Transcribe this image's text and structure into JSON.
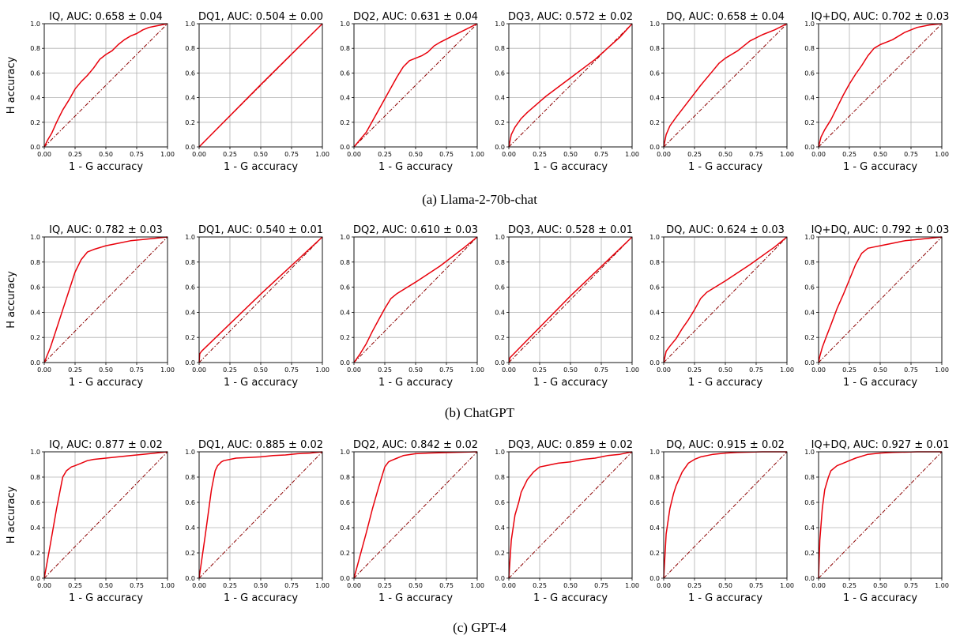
{
  "chart_data": [
    {
      "caption": "(a) Llama-2-70b-chat",
      "type": "line",
      "panels": [
        {
          "title": "IQ, AUC: 0.658 ± 0.04",
          "x": [
            0,
            0.03,
            0.06,
            0.1,
            0.15,
            0.2,
            0.25,
            0.3,
            0.35,
            0.4,
            0.45,
            0.5,
            0.55,
            0.6,
            0.65,
            0.7,
            0.75,
            0.8,
            0.85,
            0.9,
            1.0
          ],
          "y": [
            0,
            0.06,
            0.11,
            0.2,
            0.3,
            0.38,
            0.47,
            0.53,
            0.58,
            0.64,
            0.71,
            0.75,
            0.78,
            0.83,
            0.87,
            0.9,
            0.92,
            0.95,
            0.97,
            0.98,
            1.0
          ]
        },
        {
          "title": "DQ1, AUC: 0.504 ± 0.00",
          "x": [
            0,
            0.02,
            0.5,
            1.0
          ],
          "y": [
            0,
            0.02,
            0.505,
            1.0
          ]
        },
        {
          "title": "DQ2, AUC: 0.631 ± 0.04",
          "x": [
            0,
            0.1,
            0.2,
            0.3,
            0.35,
            0.4,
            0.45,
            0.5,
            0.55,
            0.6,
            0.65,
            0.7,
            0.8,
            0.9,
            1.0
          ],
          "y": [
            0,
            0.12,
            0.3,
            0.48,
            0.57,
            0.65,
            0.7,
            0.72,
            0.74,
            0.77,
            0.82,
            0.85,
            0.9,
            0.95,
            1.0
          ]
        },
        {
          "title": "DQ3, AUC: 0.572 ± 0.02",
          "x": [
            0,
            0.02,
            0.05,
            0.1,
            0.15,
            0.3,
            0.5,
            0.7,
            0.9,
            1.0
          ],
          "y": [
            0,
            0.1,
            0.16,
            0.23,
            0.28,
            0.41,
            0.56,
            0.71,
            0.89,
            1.0
          ]
        },
        {
          "title": "DQ, AUC: 0.658 ± 0.04",
          "x": [
            0,
            0.02,
            0.05,
            0.1,
            0.2,
            0.3,
            0.4,
            0.45,
            0.5,
            0.55,
            0.6,
            0.65,
            0.7,
            0.8,
            0.9,
            1.0
          ],
          "y": [
            0,
            0.1,
            0.17,
            0.24,
            0.37,
            0.5,
            0.62,
            0.68,
            0.72,
            0.75,
            0.78,
            0.82,
            0.86,
            0.91,
            0.95,
            1.0
          ]
        },
        {
          "title": "IQ+DQ, AUC: 0.702 ± 0.03",
          "x": [
            0,
            0.02,
            0.05,
            0.1,
            0.15,
            0.2,
            0.25,
            0.3,
            0.35,
            0.4,
            0.45,
            0.5,
            0.55,
            0.6,
            0.7,
            0.8,
            0.9,
            1.0
          ],
          "y": [
            0,
            0.08,
            0.14,
            0.22,
            0.32,
            0.42,
            0.51,
            0.59,
            0.66,
            0.74,
            0.8,
            0.83,
            0.85,
            0.87,
            0.93,
            0.97,
            0.99,
            1.0
          ]
        }
      ],
      "xlabel": "1 - G accuracy",
      "ylabel": "H accuracy",
      "xlim": [
        0,
        1
      ],
      "ylim": [
        0,
        1
      ],
      "xticks": [
        "0.00",
        "0.25",
        "0.50",
        "0.75",
        "1.00"
      ],
      "yticks": [
        "0.0",
        "0.2",
        "0.4",
        "0.6",
        "0.8",
        "1.0"
      ],
      "grid": true
    },
    {
      "caption": "(b) ChatGPT",
      "type": "line",
      "panels": [
        {
          "title": "IQ, AUC: 0.782 ± 0.03",
          "x": [
            0,
            0.05,
            0.1,
            0.15,
            0.2,
            0.25,
            0.3,
            0.35,
            0.4,
            0.5,
            0.6,
            0.7,
            0.8,
            0.9,
            1.0
          ],
          "y": [
            0,
            0.12,
            0.27,
            0.42,
            0.57,
            0.72,
            0.82,
            0.88,
            0.9,
            0.93,
            0.95,
            0.97,
            0.98,
            0.99,
            1.0
          ]
        },
        {
          "title": "DQ1, AUC: 0.540 ± 0.01",
          "x": [
            0,
            0.005,
            0.02,
            0.5,
            1.0
          ],
          "y": [
            0,
            0.07,
            0.09,
            0.545,
            1.0
          ]
        },
        {
          "title": "DQ2, AUC: 0.610 ± 0.03",
          "x": [
            0,
            0.05,
            0.1,
            0.15,
            0.2,
            0.25,
            0.3,
            0.35,
            0.5,
            0.7,
            0.9,
            1.0
          ],
          "y": [
            0,
            0.07,
            0.15,
            0.25,
            0.34,
            0.43,
            0.51,
            0.55,
            0.64,
            0.77,
            0.92,
            1.0
          ]
        },
        {
          "title": "DQ3, AUC: 0.528 ± 0.01",
          "x": [
            0,
            0.01,
            0.03,
            0.5,
            1.0
          ],
          "y": [
            0,
            0.04,
            0.06,
            0.53,
            1.0
          ]
        },
        {
          "title": "DQ, AUC: 0.624 ± 0.03",
          "x": [
            0,
            0.02,
            0.05,
            0.1,
            0.15,
            0.2,
            0.25,
            0.3,
            0.35,
            0.5,
            0.7,
            0.9,
            1.0
          ],
          "y": [
            0,
            0.09,
            0.13,
            0.19,
            0.27,
            0.34,
            0.42,
            0.51,
            0.56,
            0.65,
            0.78,
            0.92,
            1.0
          ]
        },
        {
          "title": "IQ+DQ, AUC: 0.792 ± 0.03",
          "x": [
            0,
            0.01,
            0.03,
            0.06,
            0.1,
            0.15,
            0.2,
            0.25,
            0.3,
            0.35,
            0.4,
            0.45,
            0.5,
            0.6,
            0.7,
            0.8,
            0.9,
            1.0
          ],
          "y": [
            0,
            0.05,
            0.12,
            0.2,
            0.3,
            0.43,
            0.54,
            0.66,
            0.78,
            0.87,
            0.91,
            0.92,
            0.93,
            0.95,
            0.97,
            0.98,
            0.99,
            1.0
          ]
        }
      ],
      "xlabel": "1 - G accuracy",
      "ylabel": "H accuracy",
      "xlim": [
        0,
        1
      ],
      "ylim": [
        0,
        1
      ],
      "xticks": [
        "0.00",
        "0.25",
        "0.50",
        "0.75",
        "1.00"
      ],
      "yticks": [
        "0.0",
        "0.2",
        "0.4",
        "0.6",
        "0.8",
        "1.0"
      ],
      "grid": true
    },
    {
      "caption": "(c) GPT-4",
      "type": "line",
      "panels": [
        {
          "title": "IQ, AUC: 0.877 ± 0.02",
          "x": [
            0,
            0.05,
            0.1,
            0.15,
            0.18,
            0.22,
            0.25,
            0.3,
            0.35,
            0.4,
            0.5,
            0.6,
            0.7,
            0.8,
            0.9,
            1.0
          ],
          "y": [
            0,
            0.27,
            0.55,
            0.8,
            0.85,
            0.88,
            0.89,
            0.91,
            0.93,
            0.94,
            0.95,
            0.96,
            0.97,
            0.98,
            0.99,
            1.0
          ]
        },
        {
          "title": "DQ1, AUC: 0.885 ± 0.02",
          "x": [
            0,
            0.05,
            0.1,
            0.13,
            0.15,
            0.18,
            0.2,
            0.25,
            0.3,
            0.4,
            0.5,
            0.6,
            0.7,
            0.8,
            0.9,
            1.0
          ],
          "y": [
            0,
            0.34,
            0.7,
            0.85,
            0.89,
            0.92,
            0.93,
            0.94,
            0.95,
            0.955,
            0.96,
            0.97,
            0.975,
            0.985,
            0.99,
            1.0
          ]
        },
        {
          "title": "DQ2, AUC: 0.842 ± 0.02",
          "x": [
            0,
            0.05,
            0.1,
            0.15,
            0.2,
            0.25,
            0.28,
            0.3,
            0.35,
            0.4,
            0.5,
            0.6,
            0.8,
            1.0
          ],
          "y": [
            0,
            0.18,
            0.36,
            0.55,
            0.72,
            0.88,
            0.92,
            0.93,
            0.95,
            0.97,
            0.985,
            0.99,
            0.995,
            1.0
          ]
        },
        {
          "title": "DQ3, AUC: 0.859 ± 0.02",
          "x": [
            0,
            0.02,
            0.05,
            0.08,
            0.1,
            0.15,
            0.2,
            0.25,
            0.3,
            0.4,
            0.5,
            0.6,
            0.7,
            0.8,
            0.9,
            1.0
          ],
          "y": [
            0,
            0.3,
            0.5,
            0.6,
            0.68,
            0.78,
            0.84,
            0.88,
            0.89,
            0.91,
            0.92,
            0.94,
            0.95,
            0.97,
            0.98,
            1.0
          ]
        },
        {
          "title": "DQ, AUC: 0.915 ± 0.02",
          "x": [
            0,
            0.02,
            0.05,
            0.08,
            0.1,
            0.15,
            0.2,
            0.25,
            0.3,
            0.35,
            0.4,
            0.5,
            0.6,
            0.8,
            1.0
          ],
          "y": [
            0,
            0.35,
            0.55,
            0.67,
            0.73,
            0.84,
            0.91,
            0.94,
            0.96,
            0.97,
            0.98,
            0.99,
            0.995,
            1.0,
            1.0
          ]
        },
        {
          "title": "IQ+DQ, AUC: 0.927 ± 0.01",
          "x": [
            0,
            0.01,
            0.03,
            0.05,
            0.08,
            0.1,
            0.15,
            0.2,
            0.25,
            0.3,
            0.4,
            0.5,
            0.6,
            0.8,
            1.0
          ],
          "y": [
            0,
            0.3,
            0.55,
            0.7,
            0.8,
            0.85,
            0.89,
            0.91,
            0.93,
            0.95,
            0.98,
            0.99,
            0.995,
            1.0,
            1.0
          ]
        }
      ],
      "xlabel": "1 - G accuracy",
      "ylabel": "H accuracy",
      "xlim": [
        0,
        1
      ],
      "ylim": [
        0,
        1
      ],
      "xticks": [
        "0.00",
        "0.25",
        "0.50",
        "0.75",
        "1.00"
      ],
      "yticks": [
        "0.0",
        "0.2",
        "0.4",
        "0.6",
        "0.8",
        "1.0"
      ],
      "grid": true
    }
  ]
}
